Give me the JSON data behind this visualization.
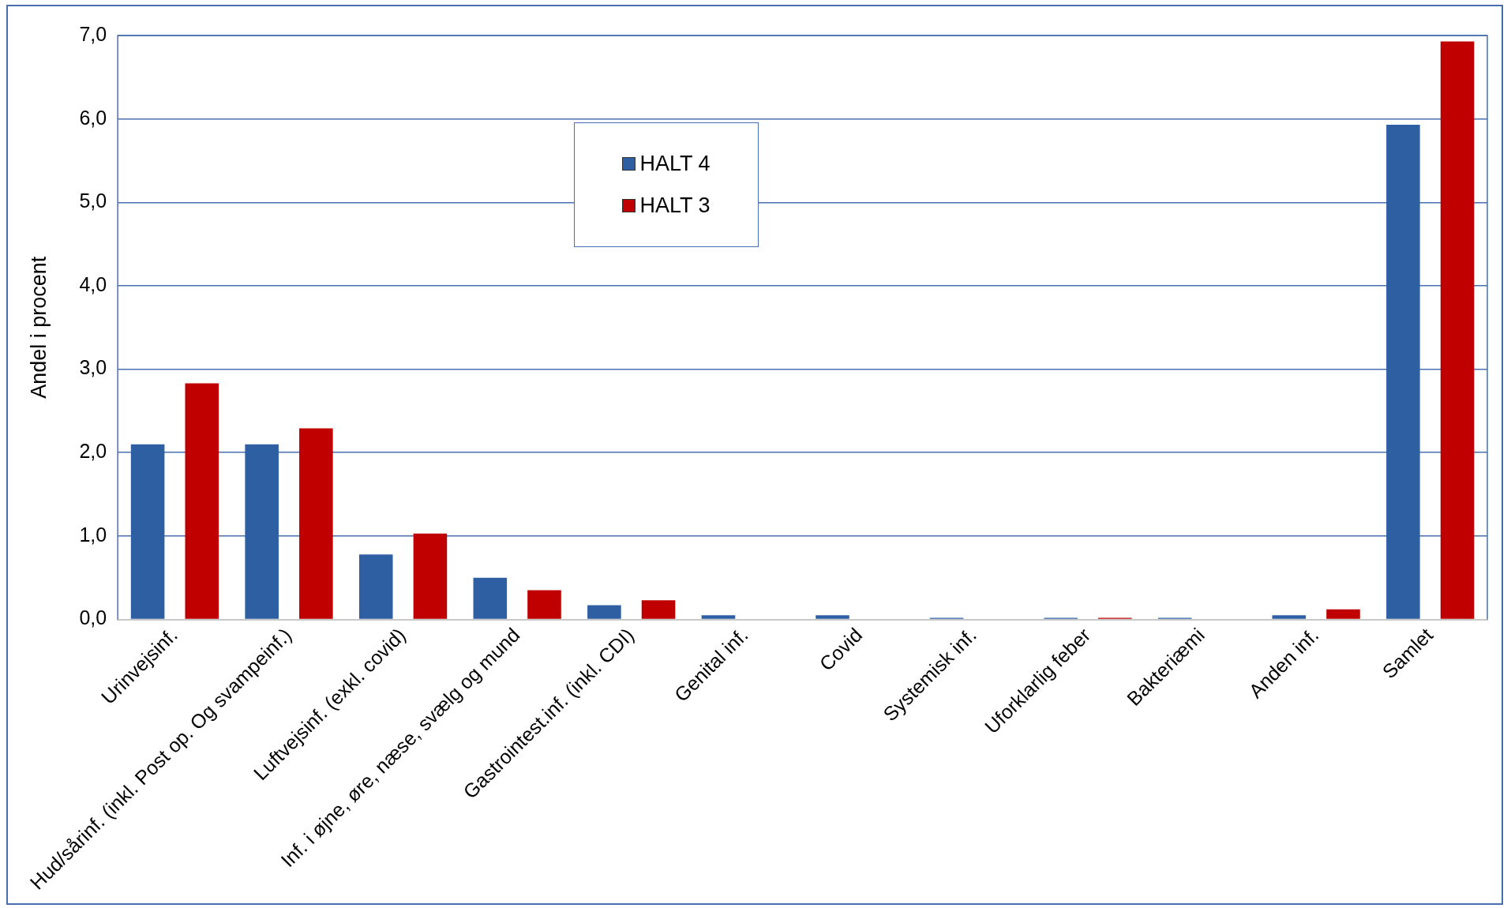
{
  "chart_data": {
    "type": "bar",
    "ylabel": "Andel i procent",
    "categories": [
      "Urinvejsinf.",
      "Hud/sårinf. (inkl. Post op. Og svampeinf.)",
      "Luftvejsinf. (exkl. covid)",
      "Inf. i øjne, øre, næse, svælg og mund",
      "Gastrointest.inf. (inkl. CDI)",
      "Genital inf.",
      "Covid",
      "Systemisk inf.",
      "Uforklarlig feber",
      "Bakteriæmi",
      "Anden inf.",
      "Samlet"
    ],
    "series": [
      {
        "name": "HALT 4",
        "color": "#2e5fa3",
        "values": [
          2.1,
          2.1,
          0.78,
          0.5,
          0.17,
          0.05,
          0.05,
          0.02,
          0.02,
          0.02,
          0.05,
          5.93
        ]
      },
      {
        "name": "HALT 3",
        "color": "#c00000",
        "values": [
          2.83,
          2.29,
          1.03,
          0.35,
          0.23,
          null,
          null,
          null,
          0.02,
          null,
          0.12,
          6.93
        ]
      }
    ],
    "ylim": [
      0,
      7
    ],
    "yticks": [
      {
        "value": 0,
        "label": "0,0"
      },
      {
        "value": 1,
        "label": "1,0"
      },
      {
        "value": 2,
        "label": "2,0"
      },
      {
        "value": 3,
        "label": "3,0"
      },
      {
        "value": 4,
        "label": "4,0"
      },
      {
        "value": 5,
        "label": "5,0"
      },
      {
        "value": 6,
        "label": "6,0"
      },
      {
        "value": 7,
        "label": "7,0"
      }
    ],
    "grid": "y",
    "legend": "top"
  }
}
